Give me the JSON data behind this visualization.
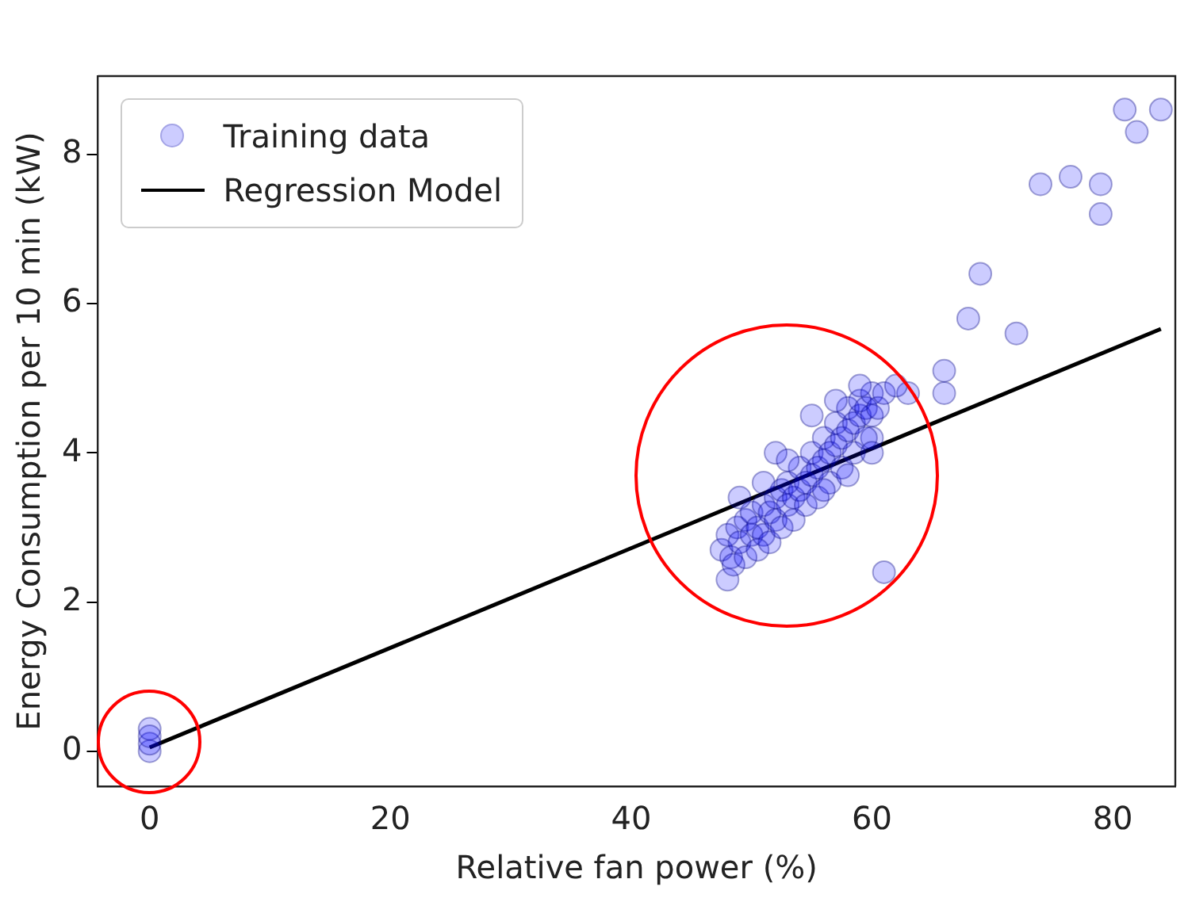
{
  "chart_data": {
    "type": "scatter",
    "xlabel": "Relative fan power (%)",
    "ylabel": "Energy Consumption per 10 min (kW)",
    "xlim": [
      -4.3,
      85.2
    ],
    "ylim": [
      -0.47,
      9.05
    ],
    "xticks": [
      0,
      20,
      40,
      60,
      80
    ],
    "yticks": [
      0,
      2,
      4,
      6,
      8
    ],
    "grid": false,
    "legend": "top left",
    "series": [
      {
        "name": "Training data",
        "marker": "circle",
        "color": "#0000ff",
        "x": [
          0,
          0,
          0,
          0,
          81,
          84,
          82,
          74,
          76.5,
          79,
          79,
          69,
          68,
          72,
          66,
          66,
          63,
          61,
          48,
          47.5,
          48,
          48.3,
          48.8,
          49,
          49.5,
          50,
          50,
          50.5,
          51,
          51,
          51.5,
          52,
          52,
          52.5,
          53,
          53,
          53.5,
          54,
          54,
          54.5,
          55,
          55,
          55.5,
          56,
          56,
          56.5,
          57,
          57,
          57.5,
          58,
          58,
          58.5,
          59,
          59,
          59.5,
          60,
          60,
          60,
          48.5,
          49.5,
          50.5,
          51.5,
          52.5,
          53.5,
          54.5,
          55.5,
          56.5,
          57.5,
          58.5,
          59.5,
          60.5,
          61,
          62,
          52,
          55,
          57,
          49,
          51,
          53,
          56,
          58,
          60,
          59
        ],
        "values": [
          0,
          0.1,
          0.3,
          0.2,
          8.6,
          8.6,
          8.3,
          7.6,
          7.7,
          7.6,
          7.2,
          6.4,
          5.8,
          5.6,
          5.1,
          4.8,
          4.8,
          2.4,
          2.3,
          2.7,
          2.9,
          2.6,
          3.0,
          2.8,
          3.1,
          2.9,
          3.2,
          3.0,
          3.3,
          2.9,
          3.2,
          3.4,
          3.1,
          3.5,
          3.3,
          3.6,
          3.4,
          3.5,
          3.8,
          3.6,
          3.7,
          4.0,
          3.8,
          3.9,
          4.2,
          4.0,
          4.1,
          4.4,
          4.2,
          4.3,
          4.6,
          4.4,
          4.5,
          4.7,
          4.6,
          4.5,
          4.8,
          4.2,
          2.5,
          2.6,
          2.7,
          2.8,
          3.0,
          3.1,
          3.3,
          3.4,
          3.6,
          3.8,
          4.0,
          4.2,
          4.6,
          4.8,
          4.9,
          4.0,
          4.5,
          4.7,
          3.4,
          3.6,
          3.9,
          3.5,
          3.7,
          4.0,
          4.9
        ]
      },
      {
        "name": "Regression Model",
        "type": "line",
        "color": "#000000",
        "x": [
          0,
          84
        ],
        "values": [
          0.05,
          5.66
        ]
      }
    ]
  }
}
